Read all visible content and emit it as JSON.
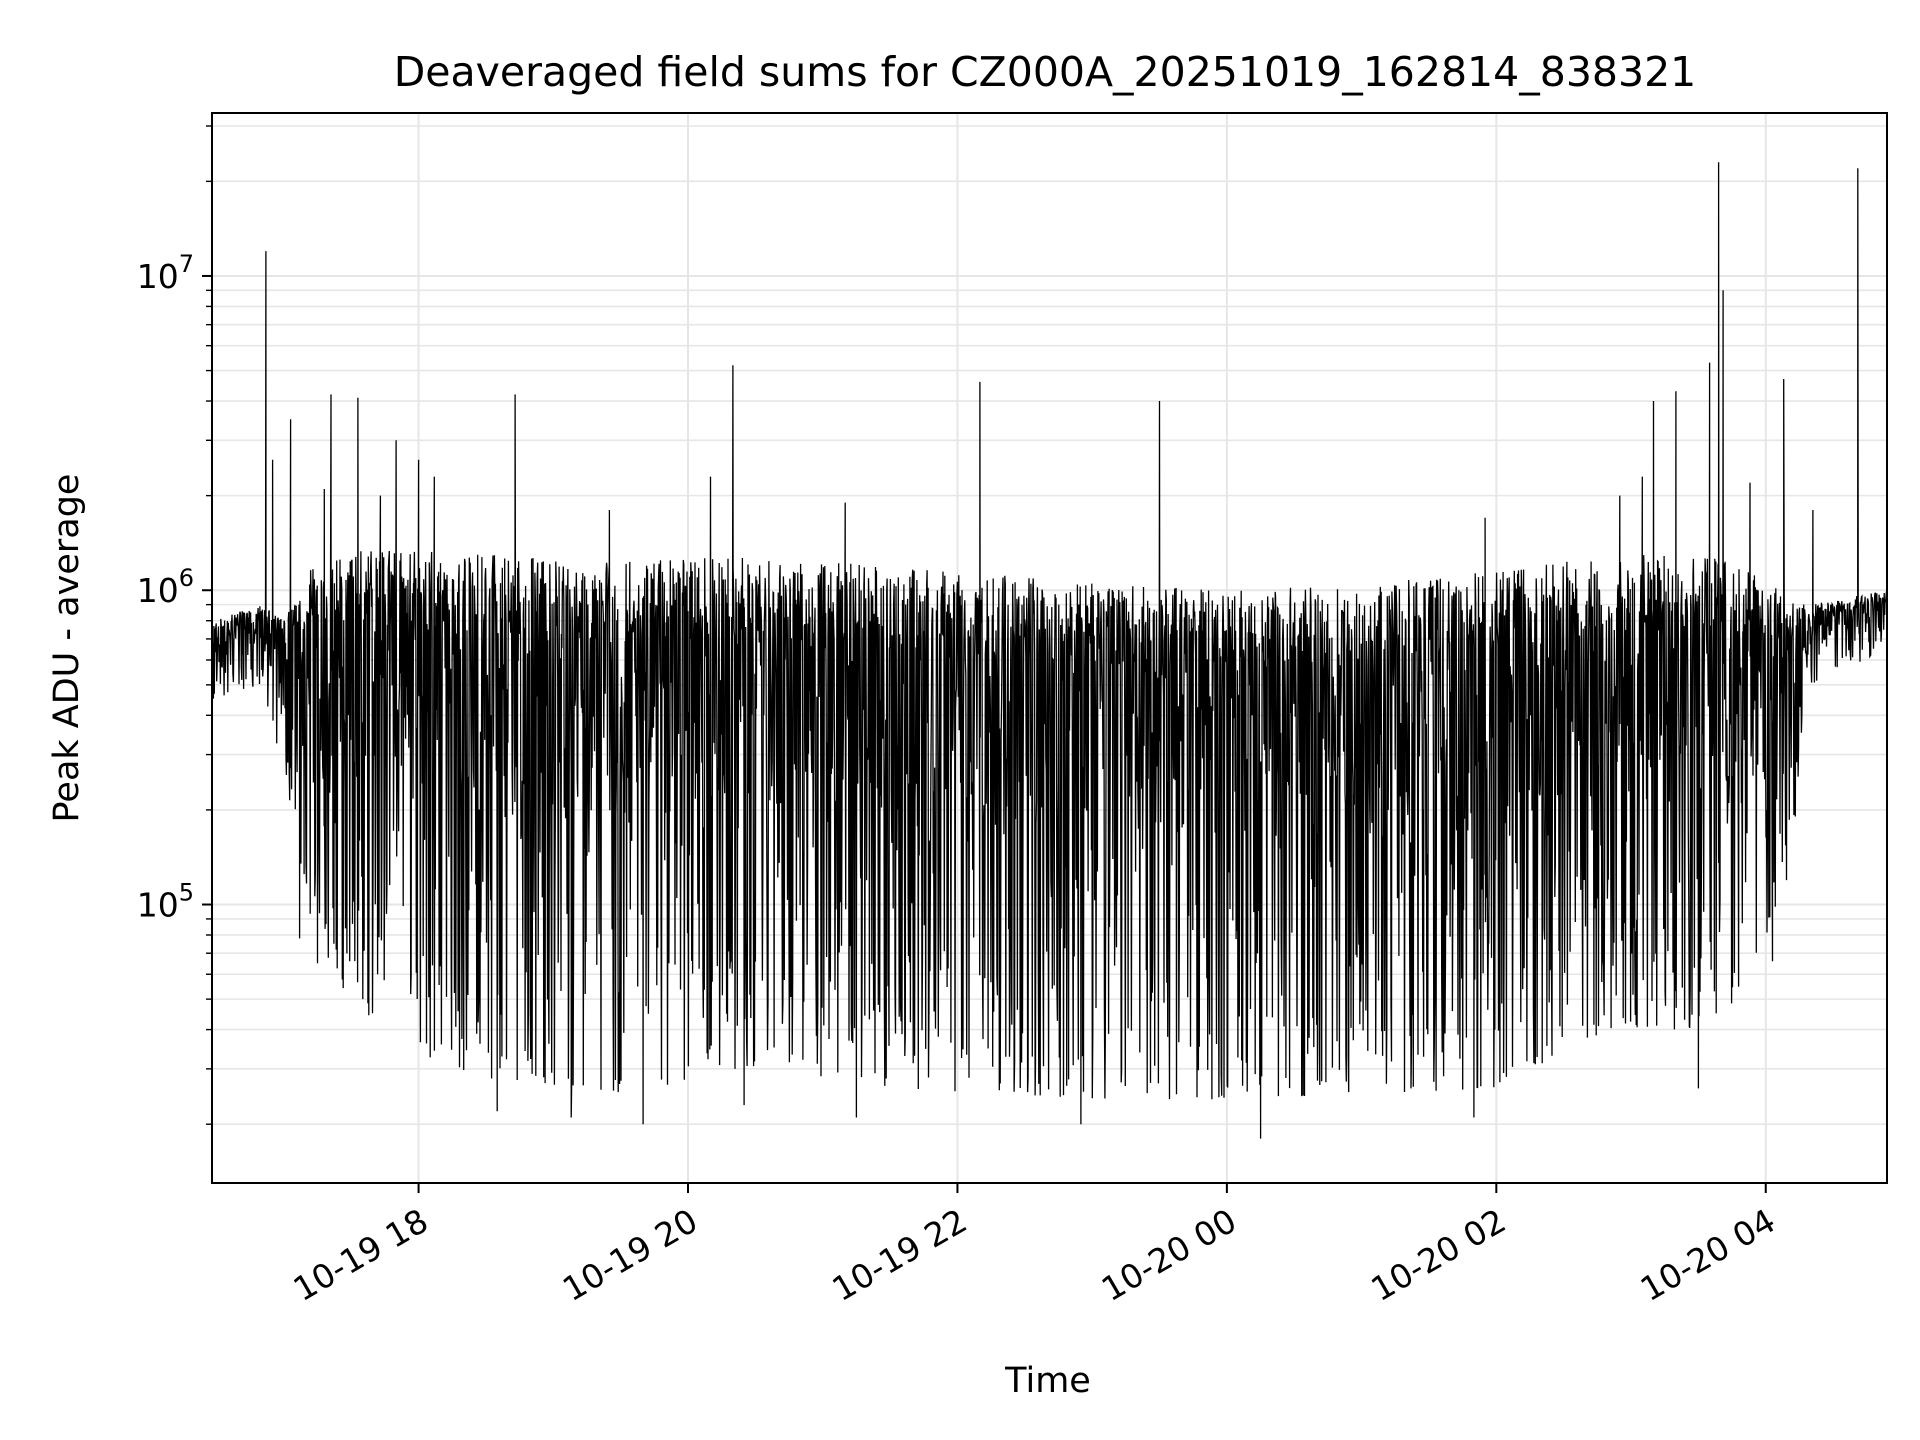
{
  "chart_data": {
    "type": "line",
    "title": "Deaveraged field sums for CZ000A_20251019_162814_838321",
    "xlabel": "Time",
    "ylabel": "Peak ADU - average",
    "yscale": "log",
    "xlim": [
      "2025-10-19 16:28",
      "2025-10-20 04:54"
    ],
    "ylim": [
      13000,
      33000000
    ],
    "x_ticks": [
      {
        "time": "2025-10-19 18:00",
        "label": "10-19 18"
      },
      {
        "time": "2025-10-19 20:00",
        "label": "10-19 20"
      },
      {
        "time": "2025-10-19 22:00",
        "label": "10-19 22"
      },
      {
        "time": "2025-10-20 00:00",
        "label": "10-20 00"
      },
      {
        "time": "2025-10-20 02:00",
        "label": "10-20 02"
      },
      {
        "time": "2025-10-20 04:00",
        "label": "10-20 04"
      }
    ],
    "y_ticks": [
      {
        "value": 100000,
        "base": "10",
        "exp": "5"
      },
      {
        "value": 1000000,
        "base": "10",
        "exp": "6"
      },
      {
        "value": 10000000,
        "base": "10",
        "exp": "7"
      }
    ],
    "grid": true,
    "line_color": "#000000",
    "grid_color": "#e6e6e6",
    "envelope": [
      {
        "time": "2025-10-19 16:28",
        "upper": 800000,
        "lower": 450000
      },
      {
        "time": "2025-10-19 16:50",
        "upper": 900000,
        "lower": 500000
      },
      {
        "time": "2025-10-19 17:00",
        "upper": 800000,
        "lower": 260000
      },
      {
        "time": "2025-10-19 17:15",
        "upper": 1300000,
        "lower": 70000
      },
      {
        "time": "2025-10-19 17:40",
        "upper": 1350000,
        "lower": 38000
      },
      {
        "time": "2025-10-19 18:30",
        "upper": 1300000,
        "lower": 28000
      },
      {
        "time": "2025-10-19 19:30",
        "upper": 1250000,
        "lower": 25000
      },
      {
        "time": "2025-10-19 20:30",
        "upper": 1300000,
        "lower": 30000
      },
      {
        "time": "2025-10-19 21:30",
        "upper": 1200000,
        "lower": 26000
      },
      {
        "time": "2025-10-19 23:00",
        "upper": 1050000,
        "lower": 24000
      },
      {
        "time": "2025-10-20 00:00",
        "upper": 1000000,
        "lower": 24000
      },
      {
        "time": "2025-10-20 01:00",
        "upper": 1050000,
        "lower": 25000
      },
      {
        "time": "2025-10-20 02:00",
        "upper": 1150000,
        "lower": 26000
      },
      {
        "time": "2025-10-20 02:50",
        "upper": 1300000,
        "lower": 40000
      },
      {
        "time": "2025-10-20 03:40",
        "upper": 1300000,
        "lower": 40000
      },
      {
        "time": "2025-10-20 04:10",
        "upper": 1000000,
        "lower": 110000
      },
      {
        "time": "2025-10-20 04:20",
        "upper": 900000,
        "lower": 500000
      },
      {
        "time": "2025-10-20 04:54",
        "upper": 1000000,
        "lower": 650000
      }
    ],
    "spikes": [
      {
        "time": "2025-10-19 16:52",
        "value": 12000000
      },
      {
        "time": "2025-10-19 16:55",
        "value": 2600000
      },
      {
        "time": "2025-10-19 17:03",
        "value": 3500000
      },
      {
        "time": "2025-10-19 17:18",
        "value": 2100000
      },
      {
        "time": "2025-10-19 17:21",
        "value": 4200000
      },
      {
        "time": "2025-10-19 17:33",
        "value": 4100000
      },
      {
        "time": "2025-10-19 17:43",
        "value": 2000000
      },
      {
        "time": "2025-10-19 17:50",
        "value": 3000000
      },
      {
        "time": "2025-10-19 18:00",
        "value": 2600000
      },
      {
        "time": "2025-10-19 18:07",
        "value": 2300000
      },
      {
        "time": "2025-10-19 18:43",
        "value": 4200000
      },
      {
        "time": "2025-10-19 19:25",
        "value": 1800000
      },
      {
        "time": "2025-10-19 20:10",
        "value": 2300000
      },
      {
        "time": "2025-10-19 20:20",
        "value": 5200000
      },
      {
        "time": "2025-10-19 21:10",
        "value": 1900000
      },
      {
        "time": "2025-10-19 22:10",
        "value": 4600000
      },
      {
        "time": "2025-10-19 23:30",
        "value": 4000000
      },
      {
        "time": "2025-10-20 01:55",
        "value": 1700000
      },
      {
        "time": "2025-10-20 02:55",
        "value": 2000000
      },
      {
        "time": "2025-10-20 03:05",
        "value": 2300000
      },
      {
        "time": "2025-10-20 03:10",
        "value": 4000000
      },
      {
        "time": "2025-10-20 03:20",
        "value": 4300000
      },
      {
        "time": "2025-10-20 03:35",
        "value": 5300000
      },
      {
        "time": "2025-10-20 03:39",
        "value": 23000000
      },
      {
        "time": "2025-10-20 03:41",
        "value": 9000000
      },
      {
        "time": "2025-10-20 03:53",
        "value": 2200000
      },
      {
        "time": "2025-10-20 04:08",
        "value": 4700000
      },
      {
        "time": "2025-10-20 04:21",
        "value": 1800000
      },
      {
        "time": "2025-10-20 04:41",
        "value": 22000000
      }
    ],
    "dips": [
      {
        "time": "2025-10-19 17:07",
        "value": 78000
      },
      {
        "time": "2025-10-19 17:09",
        "value": 125000
      },
      {
        "time": "2025-10-19 17:15",
        "value": 65000
      },
      {
        "time": "2025-10-19 18:35",
        "value": 22000
      },
      {
        "time": "2025-10-19 19:08",
        "value": 21000
      },
      {
        "time": "2025-10-19 19:40",
        "value": 20000
      },
      {
        "time": "2025-10-19 20:25",
        "value": 23000
      },
      {
        "time": "2025-10-19 21:15",
        "value": 21000
      },
      {
        "time": "2025-10-19 22:55",
        "value": 20000
      },
      {
        "time": "2025-10-20 00:15",
        "value": 18000
      },
      {
        "time": "2025-10-20 01:50",
        "value": 21000
      },
      {
        "time": "2025-10-20 03:30",
        "value": 26000
      },
      {
        "time": "2025-10-20 04:03",
        "value": 66000
      }
    ]
  }
}
